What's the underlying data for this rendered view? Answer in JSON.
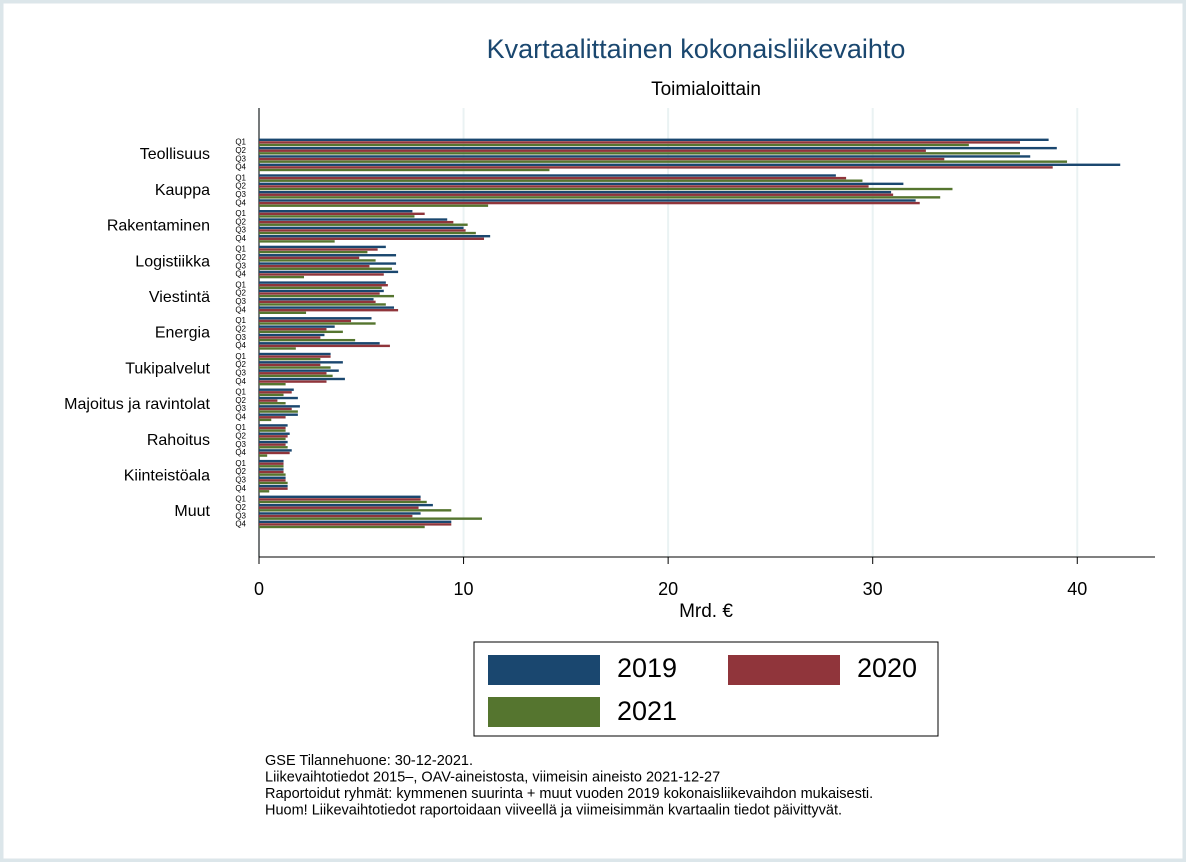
{
  "chart_data": {
    "type": "grouped-hbar",
    "title": "Kvartaalittainen kokonaisliikevaihto",
    "subtitle": "Toimialoittain",
    "x_label": "Mrd. €",
    "groups": [
      "Teollisuus",
      "Kauppa",
      "Rakentaminen",
      "Logistiikka",
      "Viestintä",
      "Energia",
      "Tukipalvelut",
      "Majoitus ja ravintolat",
      "Rahoitus",
      "Kiinteistöala",
      "Muut"
    ],
    "subcategories": [
      "Q1",
      "Q2",
      "Q3",
      "Q4"
    ],
    "series": [
      {
        "name": "2019",
        "color": "#1a476f",
        "values": [
          [
            38.6,
            39.0,
            37.7,
            42.1
          ],
          [
            28.2,
            31.5,
            30.9,
            32.1
          ],
          [
            7.5,
            9.2,
            10.0,
            11.3
          ],
          [
            6.2,
            6.7,
            6.7,
            6.8
          ],
          [
            6.2,
            6.1,
            5.6,
            6.6
          ],
          [
            5.5,
            3.7,
            3.2,
            5.9
          ],
          [
            3.5,
            4.1,
            3.9,
            4.2
          ],
          [
            1.7,
            1.9,
            2.0,
            1.9
          ],
          [
            1.4,
            1.5,
            1.4,
            1.6
          ],
          [
            1.2,
            1.2,
            1.3,
            1.4
          ],
          [
            7.9,
            8.5,
            7.9,
            9.4
          ]
        ]
      },
      {
        "name": "2020",
        "color": "#90353b",
        "values": [
          [
            37.2,
            32.6,
            33.5,
            38.8
          ],
          [
            28.7,
            29.8,
            31.0,
            32.3
          ],
          [
            8.1,
            9.5,
            10.1,
            11.0
          ],
          [
            5.8,
            4.9,
            5.4,
            6.1
          ],
          [
            6.3,
            5.9,
            5.7,
            6.8
          ],
          [
            4.5,
            3.3,
            3.0,
            6.4
          ],
          [
            3.5,
            3.0,
            3.3,
            3.3
          ],
          [
            1.6,
            0.9,
            1.6,
            1.3
          ],
          [
            1.3,
            1.4,
            1.3,
            1.5
          ],
          [
            1.2,
            1.2,
            1.3,
            1.4
          ],
          [
            7.9,
            7.8,
            7.5,
            9.4
          ]
        ]
      },
      {
        "name": "2021",
        "color": "#55752f",
        "values": [
          [
            34.7,
            37.2,
            39.5,
            14.2
          ],
          [
            29.5,
            33.9,
            33.3,
            11.2
          ],
          [
            7.6,
            10.2,
            10.6,
            3.7
          ],
          [
            5.3,
            5.7,
            6.5,
            2.2
          ],
          [
            6.0,
            6.6,
            6.2,
            2.3
          ],
          [
            5.7,
            4.1,
            4.7,
            1.8
          ],
          [
            3.0,
            3.5,
            3.6,
            1.3
          ],
          [
            1.2,
            1.3,
            1.9,
            0.6
          ],
          [
            1.3,
            1.3,
            1.4,
            0.4
          ],
          [
            1.2,
            1.3,
            1.4,
            0.5
          ],
          [
            8.2,
            9.4,
            10.9,
            8.1
          ]
        ]
      }
    ],
    "xlim": [
      0,
      43.8
    ],
    "xticks": [
      0,
      10,
      20,
      30,
      40
    ],
    "grid": true,
    "notes": [
      "GSE Tilannehuone: 30-12-2021.",
      "Liikevaihtotiedot 2015–, OAV-aineistosta, viimeisin aineisto 2021-12-27",
      "Raportoidut ryhmät: kymmenen suurinta + muut vuoden 2019 kokonaisliikevaihdon mukaisesti.",
      "Huom! Liikevaihtotiedot raportoidaan viiveellä ja viimeisimmän kvartaalin tiedot päivittyvät."
    ]
  }
}
